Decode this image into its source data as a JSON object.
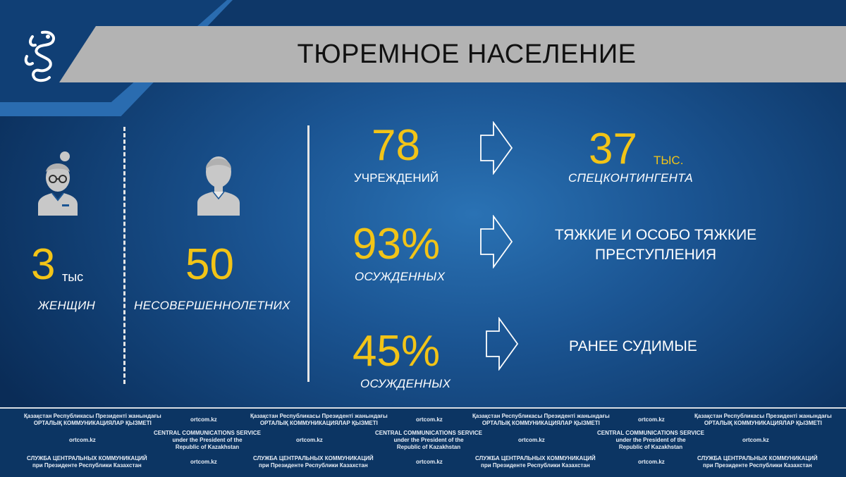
{
  "title": "ТЮРЕМНОЕ НАСЕЛЕНИЕ",
  "colors": {
    "accent": "#f2c417",
    "title_bar": "#b3b3b3",
    "background": "#1b5593",
    "text": "#ffffff"
  },
  "icons": {
    "logo": "snow-leopard-logo-icon",
    "woman": "woman-icon",
    "boy": "boy-icon",
    "arrow": "arrow-right-outline-icon"
  },
  "women": {
    "value": "3",
    "unit": "тыс",
    "label": "женщин"
  },
  "minors": {
    "value": "50",
    "label": "несовершеннолетних"
  },
  "stats": [
    {
      "value": "78",
      "label": "учреждений",
      "result_value": "37",
      "result_unit": "тыс.",
      "result_label": "спецконтингента"
    },
    {
      "value": "93%",
      "label": "осужденных",
      "result_line1": "ТЯЖКИЕ И ОСОБО ТЯЖКИЕ",
      "result_line2": "ПРЕСТУПЛЕНИЯ"
    },
    {
      "value": "45%",
      "label": "осужденных",
      "result_line1": "РАНЕЕ СУДИМЫЕ"
    }
  ],
  "footer": {
    "kz_line1": "Қазақстан Республикасы Президенті жанындағы",
    "kz_line2": "ОРТАЛЫҚ КОММУНИКАЦИЯЛАР ҚЫЗМЕТІ",
    "en_line1": "CENTRAL COMMUNICATIONS SERVICE",
    "en_line2": "under the President of the",
    "en_line3": "Republic of Kazakhstan",
    "ru_line1": "СЛУЖБА ЦЕНТРАЛЬНЫХ КОММУНИКАЦИЙ",
    "ru_line2": "при Президенте Республики Казахстан",
    "site": "ortcom.kz"
  }
}
